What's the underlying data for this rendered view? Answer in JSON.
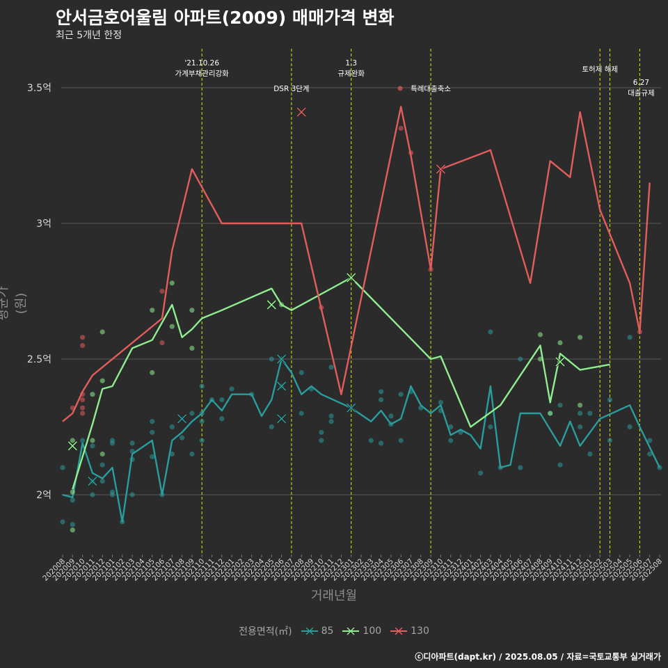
{
  "title": "안서금호어울림 아파트(2009) 매매가격 변화",
  "subtitle": "최근 5개년 한정",
  "caption": "ⓒ디아파트(dapt.kr) / 2025.08.05 / 자료=국토교통부 실거래가",
  "colors": {
    "background": "#2b2b2b",
    "grid": "#5a5a5a",
    "85": "#2a9d9d",
    "100": "#90ee90",
    "130": "#e35d5d",
    "event_line": "#e6e600"
  },
  "chart_data": {
    "type": "line",
    "xlabel": "거래년월",
    "ylabel": "평균가(원)",
    "ylim": [
      1.8,
      3.65
    ],
    "yticks": [
      {
        "value": 2.0,
        "label": "2억"
      },
      {
        "value": 2.5,
        "label": "2.5억"
      },
      {
        "value": 3.0,
        "label": "3억"
      },
      {
        "value": 3.5,
        "label": "3.5억"
      }
    ],
    "grid": true,
    "legend_title": "전용면적(㎡)",
    "legend_position": "bottom",
    "categories": [
      "202008",
      "202009",
      "202010",
      "202011",
      "202012",
      "202101",
      "202102",
      "202103",
      "202104",
      "202105",
      "202106",
      "202107",
      "202108",
      "202109",
      "202110",
      "202111",
      "202112",
      "202201",
      "202202",
      "202203",
      "202204",
      "202205",
      "202206",
      "202207",
      "202208",
      "202209",
      "202210",
      "202211",
      "202212",
      "202301",
      "202302",
      "202303",
      "202304",
      "202305",
      "202306",
      "202307",
      "202308",
      "202309",
      "202310",
      "202311",
      "202312",
      "202401",
      "202402",
      "202403",
      "202404",
      "202405",
      "202406",
      "202407",
      "202408",
      "202409",
      "202410",
      "202411",
      "202412",
      "202501",
      "202502",
      "202503",
      "202504",
      "202505",
      "202506",
      "202507",
      "202508"
    ],
    "series": [
      {
        "name": "85",
        "line": [
          [
            "202008",
            2.0
          ],
          [
            "202009",
            1.99
          ],
          [
            "202010",
            2.19
          ],
          [
            "202011",
            2.08
          ],
          [
            "202012",
            2.06
          ],
          [
            "202101",
            2.1
          ],
          [
            "202102",
            1.9
          ],
          [
            "202103",
            2.15
          ],
          [
            "202105",
            2.2
          ],
          [
            "202106",
            2.0
          ],
          [
            "202107",
            2.2
          ],
          [
            "202108",
            2.23
          ],
          [
            "202109",
            2.27
          ],
          [
            "202110",
            2.3
          ],
          [
            "202111",
            2.35
          ],
          [
            "202112",
            2.31
          ],
          [
            "202201",
            2.37
          ],
          [
            "202203",
            2.37
          ],
          [
            "202204",
            2.29
          ],
          [
            "202205",
            2.35
          ],
          [
            "202206",
            2.5
          ],
          [
            "202207",
            2.45
          ],
          [
            "202208",
            2.37
          ],
          [
            "202209",
            2.4
          ],
          [
            "202210",
            2.37
          ],
          [
            "202301",
            2.32
          ],
          [
            "202303",
            2.27
          ],
          [
            "202304",
            2.31
          ],
          [
            "202305",
            2.26
          ],
          [
            "202306",
            2.28
          ],
          [
            "202307",
            2.4
          ],
          [
            "202308",
            2.33
          ],
          [
            "202309",
            2.3
          ],
          [
            "202310",
            2.33
          ],
          [
            "202311",
            2.22
          ],
          [
            "202312",
            2.24
          ],
          [
            "202401",
            2.22
          ],
          [
            "202402",
            2.17
          ],
          [
            "202403",
            2.4
          ],
          [
            "202404",
            2.1
          ],
          [
            "202405",
            2.11
          ],
          [
            "202406",
            2.3
          ],
          [
            "202408",
            2.3
          ],
          [
            "202410",
            2.18
          ],
          [
            "202411",
            2.27
          ],
          [
            "202412",
            2.18
          ],
          [
            "202502",
            2.28
          ],
          [
            "202505",
            2.33
          ],
          [
            "202506",
            2.25
          ],
          [
            "202508",
            2.1
          ]
        ],
        "points": [
          [
            "202008",
            2.1
          ],
          [
            "202008",
            1.9
          ],
          [
            "202009",
            1.89
          ],
          [
            "202009",
            1.98
          ],
          [
            "202010",
            2.2
          ],
          [
            "202011",
            2.18
          ],
          [
            "202011",
            2.0
          ],
          [
            "202011",
            2.05
          ],
          [
            "202012",
            2.05
          ],
          [
            "202012",
            2.11
          ],
          [
            "202101",
            2.19
          ],
          [
            "202101",
            2.2
          ],
          [
            "202101",
            2.01
          ],
          [
            "202101",
            2.0
          ],
          [
            "202102",
            1.9
          ],
          [
            "202103",
            2.19
          ],
          [
            "202103",
            2.13
          ],
          [
            "202103",
            2.16
          ],
          [
            "202103",
            2.0
          ],
          [
            "202105",
            2.27
          ],
          [
            "202105",
            2.23
          ],
          [
            "202105",
            2.14
          ],
          [
            "202106",
            2.0
          ],
          [
            "202107",
            2.25
          ],
          [
            "202107",
            2.15
          ],
          [
            "202108",
            2.21
          ],
          [
            "202109",
            2.3
          ],
          [
            "202109",
            2.15
          ],
          [
            "202110",
            2.4
          ],
          [
            "202110",
            2.3
          ],
          [
            "202110",
            2.2
          ],
          [
            "202110",
            2.27
          ],
          [
            "202111",
            2.35
          ],
          [
            "202112",
            2.35
          ],
          [
            "202112",
            2.28
          ],
          [
            "202201",
            2.39
          ],
          [
            "202203",
            2.37
          ],
          [
            "202205",
            2.5
          ],
          [
            "202205",
            2.25
          ],
          [
            "202206",
            2.5
          ],
          [
            "202206",
            2.4
          ],
          [
            "202208",
            2.45
          ],
          [
            "202208",
            2.3
          ],
          [
            "202209",
            2.39
          ],
          [
            "202210",
            2.23
          ],
          [
            "202210",
            2.2
          ],
          [
            "202211",
            2.47
          ],
          [
            "202211",
            2.29
          ],
          [
            "202211",
            2.27
          ],
          [
            "202303",
            2.2
          ],
          [
            "202304",
            2.38
          ],
          [
            "202304",
            2.35
          ],
          [
            "202304",
            2.19
          ],
          [
            "202305",
            2.29
          ],
          [
            "202305",
            2.26
          ],
          [
            "202306",
            2.37
          ],
          [
            "202306",
            2.2
          ],
          [
            "202307",
            2.38
          ],
          [
            "202308",
            2.32
          ],
          [
            "202310",
            2.34
          ],
          [
            "202310",
            2.31
          ],
          [
            "202311",
            2.25
          ],
          [
            "202311",
            2.2
          ],
          [
            "202312",
            2.23
          ],
          [
            "202402",
            2.08
          ],
          [
            "202403",
            2.6
          ],
          [
            "202403",
            2.25
          ],
          [
            "202404",
            2.1
          ],
          [
            "202406",
            2.5
          ],
          [
            "202406",
            2.1
          ],
          [
            "202409",
            2.3
          ],
          [
            "202410",
            2.33
          ],
          [
            "202410",
            2.11
          ],
          [
            "202412",
            2.3
          ],
          [
            "202412",
            2.25
          ],
          [
            "202501",
            2.3
          ],
          [
            "202501",
            2.15
          ],
          [
            "202503",
            2.35
          ],
          [
            "202503",
            2.2
          ],
          [
            "202505",
            2.58
          ],
          [
            "202505",
            2.25
          ],
          [
            "202507",
            2.2
          ],
          [
            "202507",
            2.15
          ],
          [
            "202508",
            2.1
          ]
        ],
        "markers_x": [
          [
            "202011",
            2.05
          ],
          [
            "202108",
            2.28
          ],
          [
            "202206",
            2.5
          ],
          [
            "202206",
            2.4
          ],
          [
            "202206",
            2.28
          ],
          [
            "202301",
            2.32
          ]
        ]
      },
      {
        "name": "100",
        "line": [
          [
            "202009",
            2.02
          ],
          [
            "202011",
            2.26
          ],
          [
            "202012",
            2.39
          ],
          [
            "202101",
            2.4
          ],
          [
            "202103",
            2.54
          ],
          [
            "202105",
            2.57
          ],
          [
            "202107",
            2.7
          ],
          [
            "202108",
            2.58
          ],
          [
            "202109",
            2.61
          ],
          [
            "202110",
            2.65
          ],
          [
            "202112",
            2.68
          ],
          [
            "202205",
            2.76
          ],
          [
            "202206",
            2.7
          ],
          [
            "202207",
            2.68
          ],
          [
            "202301",
            2.8
          ],
          [
            "202309",
            2.5
          ],
          [
            "202310",
            2.51
          ],
          [
            "202401",
            2.25
          ],
          [
            "202404",
            2.33
          ],
          [
            "202408",
            2.55
          ],
          [
            "202409",
            2.34
          ],
          [
            "202410",
            2.52
          ],
          [
            "202412",
            2.46
          ],
          [
            "202503",
            2.48
          ]
        ],
        "points": [
          [
            "202009",
            2.2
          ],
          [
            "202009",
            1.87
          ],
          [
            "202009",
            2.01
          ],
          [
            "202011",
            2.37
          ],
          [
            "202011",
            2.2
          ],
          [
            "202012",
            2.6
          ],
          [
            "202012",
            2.42
          ],
          [
            "202012",
            2.15
          ],
          [
            "202105",
            2.68
          ],
          [
            "202105",
            2.45
          ],
          [
            "202107",
            2.78
          ],
          [
            "202107",
            2.62
          ],
          [
            "202109",
            2.68
          ],
          [
            "202109",
            2.54
          ],
          [
            "202206",
            2.7
          ],
          [
            "202408",
            2.59
          ],
          [
            "202408",
            2.5
          ],
          [
            "202409",
            2.3
          ],
          [
            "202410",
            2.56
          ],
          [
            "202412",
            2.58
          ],
          [
            "202412",
            2.33
          ]
        ],
        "markers_x": [
          [
            "202009",
            2.18
          ],
          [
            "202205",
            2.7
          ],
          [
            "202301",
            2.8
          ],
          [
            "202410",
            2.49
          ]
        ]
      },
      {
        "name": "130",
        "line": [
          [
            "202008",
            2.27
          ],
          [
            "202009",
            2.3
          ],
          [
            "202010",
            2.38
          ],
          [
            "202011",
            2.44
          ],
          [
            "202106",
            2.65
          ],
          [
            "202107",
            2.9
          ],
          [
            "202109",
            3.2
          ],
          [
            "202112",
            3.0
          ],
          [
            "202203",
            3.0
          ],
          [
            "202208",
            3.0
          ],
          [
            "202212",
            2.37
          ],
          [
            "202306",
            3.43
          ],
          [
            "202307",
            3.25
          ],
          [
            "202309",
            2.83
          ],
          [
            "202310",
            3.2
          ],
          [
            "202403",
            3.27
          ],
          [
            "202407",
            2.78
          ],
          [
            "202409",
            3.23
          ],
          [
            "202411",
            3.17
          ],
          [
            "202412",
            3.41
          ],
          [
            "202502",
            3.05
          ],
          [
            "202505",
            2.78
          ],
          [
            "202506",
            2.6
          ],
          [
            "202507",
            3.15
          ]
        ],
        "points": [
          [
            "202009",
            2.32
          ],
          [
            "202010",
            2.58
          ],
          [
            "202010",
            2.55
          ],
          [
            "202010",
            2.37
          ],
          [
            "202010",
            2.35
          ],
          [
            "202010",
            2.32
          ],
          [
            "202010",
            2.3
          ],
          [
            "202106",
            2.75
          ],
          [
            "202106",
            2.56
          ],
          [
            "202210",
            2.69
          ],
          [
            "202306",
            3.35
          ],
          [
            "202307",
            3.26
          ],
          [
            "202309",
            2.83
          ],
          [
            "202506",
            2.6
          ]
        ],
        "markers_x": [
          [
            "202208",
            3.41
          ],
          [
            "202310",
            3.2
          ]
        ]
      }
    ],
    "events": [
      {
        "month": "202110",
        "label": [
          "'21.10.26",
          "가계부채관리강화"
        ]
      },
      {
        "month": "202207",
        "label": [
          "DSR 3단계"
        ]
      },
      {
        "month": "202301",
        "label": [
          "1.3",
          "규제완화"
        ]
      },
      {
        "month": "202309",
        "label": [
          "특례대출축소"
        ]
      },
      {
        "month": "202502",
        "label": [
          "토허제 해제"
        ]
      },
      {
        "month": "202503",
        "label": []
      },
      {
        "month": "202506",
        "label": [
          "6.27",
          "대출규제"
        ]
      }
    ]
  }
}
